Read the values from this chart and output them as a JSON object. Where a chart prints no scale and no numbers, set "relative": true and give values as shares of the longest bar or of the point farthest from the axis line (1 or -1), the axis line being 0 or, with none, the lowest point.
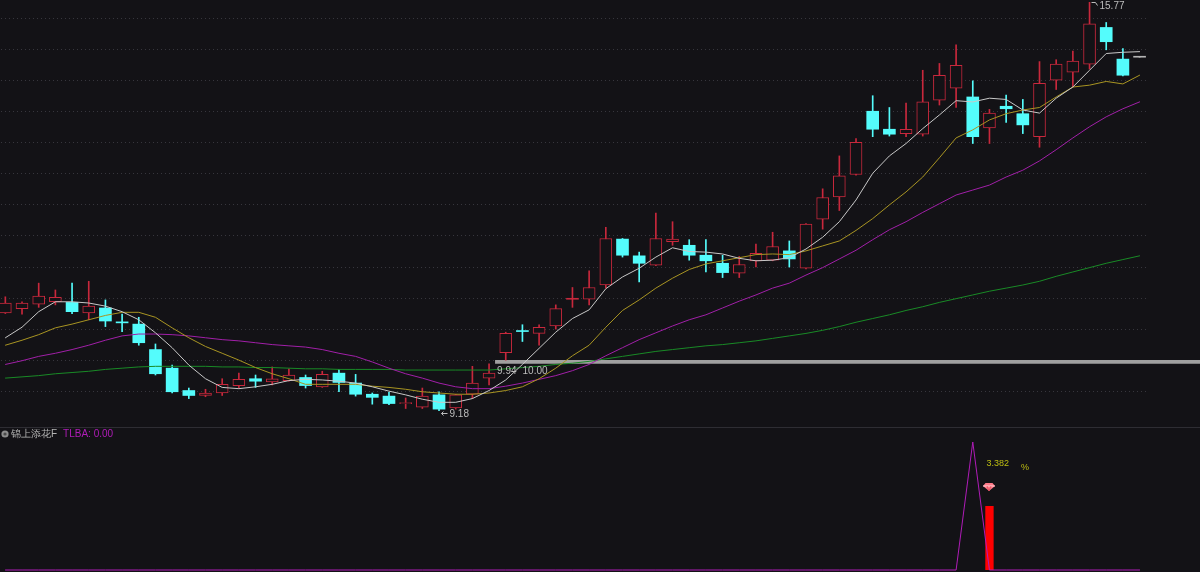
{
  "chart_data": [
    {
      "type": "candlestick",
      "categories": [
        null,
        null,
        null,
        null,
        null,
        null,
        null,
        null,
        null,
        null,
        null,
        null,
        null,
        null,
        null,
        null,
        null,
        null,
        null,
        null,
        null,
        null,
        null,
        null,
        null,
        null,
        null,
        null,
        null,
        null,
        null,
        null,
        null,
        null,
        null,
        null,
        null,
        null,
        null,
        null,
        null,
        null,
        null,
        null,
        null,
        null,
        null,
        null,
        null,
        null,
        null,
        null,
        null,
        null,
        null,
        null,
        null,
        null,
        null,
        null,
        null,
        null,
        null,
        null,
        null,
        null,
        null,
        null,
        null
      ],
      "ohlc": [
        [
          10.76,
          11.02,
          10.75,
          10.92
        ],
        [
          10.83,
          10.94,
          10.74,
          10.92
        ],
        [
          10.9,
          11.24,
          10.85,
          11.03
        ],
        [
          10.94,
          11.13,
          10.89,
          11.01
        ],
        [
          10.93,
          11.24,
          10.75,
          10.78
        ],
        [
          10.76,
          11.27,
          10.65,
          10.87
        ],
        [
          10.84,
          10.97,
          10.54,
          10.63
        ],
        [
          10.6,
          10.74,
          10.46,
          10.6
        ],
        [
          10.58,
          10.69,
          10.24,
          10.28
        ],
        [
          10.17,
          10.26,
          9.76,
          9.78
        ],
        [
          9.87,
          9.92,
          9.47,
          9.49
        ],
        [
          9.51,
          9.55,
          9.38,
          9.43
        ],
        [
          9.43,
          9.53,
          9.41,
          9.47
        ],
        [
          9.47,
          9.7,
          9.43,
          9.61
        ],
        [
          9.59,
          9.79,
          9.55,
          9.69
        ],
        [
          9.7,
          9.76,
          9.56,
          9.66
        ],
        [
          9.65,
          9.89,
          9.6,
          9.7
        ],
        [
          9.67,
          9.86,
          9.66,
          9.76
        ],
        [
          9.72,
          9.76,
          9.55,
          9.59
        ],
        [
          9.57,
          9.82,
          9.56,
          9.77
        ],
        [
          9.79,
          9.85,
          9.49,
          9.64
        ],
        [
          9.63,
          9.77,
          9.42,
          9.45
        ],
        [
          9.45,
          9.47,
          9.29,
          9.4
        ],
        [
          9.42,
          9.48,
          9.28,
          9.3
        ],
        [
          9.3,
          9.39,
          9.22,
          9.31
        ],
        [
          9.24,
          9.55,
          9.22,
          9.42
        ],
        [
          9.44,
          9.49,
          9.18,
          9.21
        ],
        [
          9.23,
          9.45,
          9.21,
          9.44
        ],
        [
          9.45,
          9.9,
          9.38,
          9.63
        ],
        [
          9.71,
          9.94,
          9.6,
          9.79
        ],
        [
          10.12,
          10.45,
          10.0,
          10.43
        ],
        [
          10.46,
          10.57,
          10.3,
          10.46
        ],
        [
          10.43,
          10.57,
          10.24,
          10.53
        ],
        [
          10.55,
          10.89,
          10.5,
          10.83
        ],
        [
          10.98,
          11.17,
          10.85,
          10.98
        ],
        [
          10.98,
          11.44,
          10.89,
          11.17
        ],
        [
          11.21,
          12.14,
          11.16,
          11.96
        ],
        [
          11.95,
          11.96,
          11.66,
          11.69
        ],
        [
          11.68,
          11.74,
          11.26,
          11.56
        ],
        [
          11.53,
          12.37,
          11.52,
          11.96
        ],
        [
          11.91,
          12.23,
          11.85,
          11.95
        ],
        [
          11.85,
          11.94,
          11.61,
          11.69
        ],
        [
          11.69,
          11.94,
          11.42,
          11.6
        ],
        [
          11.56,
          11.69,
          11.33,
          11.41
        ],
        [
          11.4,
          11.67,
          11.33,
          11.54
        ],
        [
          11.6,
          11.87,
          11.5,
          11.72
        ],
        [
          11.61,
          12.06,
          11.6,
          11.83
        ],
        [
          11.76,
          11.92,
          11.5,
          11.63
        ],
        [
          11.48,
          12.2,
          11.47,
          12.19
        ],
        [
          12.27,
          12.76,
          12.11,
          12.62
        ],
        [
          12.63,
          13.29,
          12.41,
          12.97
        ],
        [
          12.99,
          13.57,
          12.98,
          13.51
        ],
        [
          14.01,
          14.26,
          13.6,
          13.72
        ],
        [
          13.72,
          14.07,
          13.61,
          13.64
        ],
        [
          13.65,
          14.14,
          13.6,
          13.72
        ],
        [
          13.64,
          14.67,
          13.61,
          14.16
        ],
        [
          14.19,
          14.78,
          14.11,
          14.59
        ],
        [
          14.38,
          15.08,
          14.07,
          14.75
        ],
        [
          14.24,
          14.5,
          13.49,
          13.6
        ],
        [
          13.74,
          14.04,
          13.49,
          13.98
        ],
        [
          14.09,
          14.27,
          13.83,
          14.05
        ],
        [
          13.97,
          14.2,
          13.65,
          13.79
        ],
        [
          13.6,
          14.81,
          13.43,
          14.46
        ],
        [
          14.51,
          14.84,
          14.36,
          14.77
        ],
        [
          14.64,
          14.98,
          14.4,
          14.82
        ],
        [
          14.77,
          15.77,
          14.69,
          15.42
        ],
        [
          15.36,
          15.44,
          15.0,
          15.13
        ],
        [
          14.85,
          15.02,
          14.58,
          14.59
        ],
        [
          14.88,
          14.88,
          14.88,
          14.88
        ]
      ],
      "colors": [
        "#c8283c",
        "#c8283c",
        "#c8283c",
        "#c8283c",
        "#54fcfc",
        "#c8283c",
        "#54fcfc",
        "#54fcfc",
        "#54fcfc",
        "#54fcfc",
        "#54fcfc",
        "#54fcfc",
        "#c8283c",
        "#c8283c",
        "#c8283c",
        "#54fcfc",
        "#c8283c",
        "#c8283c",
        "#54fcfc",
        "#c8283c",
        "#54fcfc",
        "#54fcfc",
        "#54fcfc",
        "#54fcfc",
        "#c8283c",
        "#c8283c",
        "#54fcfc",
        "#c8283c",
        "#c8283c",
        "#c8283c",
        "#c8283c",
        "#54fcfc",
        "#c8283c",
        "#c8283c",
        "#c8283c",
        "#c8283c",
        "#c8283c",
        "#54fcfc",
        "#54fcfc",
        "#c8283c",
        "#c8283c",
        "#54fcfc",
        "#54fcfc",
        "#54fcfc",
        "#c8283c",
        "#c8283c",
        "#c8283c",
        "#54fcfc",
        "#c8283c",
        "#c8283c",
        "#c8283c",
        "#c8283c",
        "#54fcfc",
        "#54fcfc",
        "#c8283c",
        "#c8283c",
        "#c8283c",
        "#c8283c",
        "#54fcfc",
        "#c8283c",
        "#54fcfc",
        "#54fcfc",
        "#c8283c",
        "#c8283c",
        "#c8283c",
        "#c8283c",
        "#54fcfc",
        "#54fcfc",
        "#b4b4b4"
      ],
      "series": [
        {
          "type": "line",
          "color": "#c8c8c8",
          "values": [
            10.36,
            10.53,
            10.78,
            10.94,
            10.94,
            10.92,
            10.87,
            10.78,
            10.65,
            10.44,
            10.2,
            9.92,
            9.7,
            9.56,
            9.54,
            9.57,
            9.61,
            9.67,
            9.69,
            9.68,
            9.66,
            9.63,
            9.57,
            9.5,
            9.44,
            9.37,
            9.32,
            9.32,
            9.38,
            9.51,
            9.68,
            9.93,
            10.19,
            10.45,
            10.67,
            10.81,
            11.15,
            11.34,
            11.48,
            11.66,
            11.81,
            11.75,
            11.74,
            11.71,
            11.64,
            11.6,
            11.61,
            11.65,
            11.79,
            11.98,
            12.23,
            12.58,
            13.01,
            13.29,
            13.49,
            13.73,
            13.95,
            14.18,
            14.16,
            14.22,
            14.2,
            14.03,
            13.98,
            14.22,
            14.4,
            14.67,
            14.94,
            14.96,
            14.97
          ]
        },
        {
          "type": "line",
          "color": "#a89422",
          "values": [
            10.24,
            10.32,
            10.41,
            10.52,
            10.58,
            10.65,
            10.72,
            10.77,
            10.77,
            10.69,
            10.52,
            10.36,
            10.22,
            10.11,
            10.0,
            9.88,
            9.78,
            9.7,
            9.61,
            9.61,
            9.61,
            9.61,
            9.58,
            9.56,
            9.53,
            9.49,
            9.47,
            9.45,
            9.45,
            9.47,
            9.51,
            9.57,
            9.7,
            9.87,
            10.07,
            10.24,
            10.53,
            10.8,
            10.97,
            11.16,
            11.32,
            11.46,
            11.55,
            11.6,
            11.65,
            11.7,
            11.71,
            11.7,
            11.76,
            11.84,
            11.92,
            12.09,
            12.28,
            12.5,
            12.71,
            12.95,
            13.26,
            13.58,
            13.71,
            13.87,
            13.97,
            14.03,
            14.07,
            14.24,
            14.4,
            14.43,
            14.49,
            14.45,
            14.59
          ]
        },
        {
          "type": "line",
          "color": "#a11fa8",
          "values": [
            9.93,
            9.99,
            10.06,
            10.11,
            10.17,
            10.24,
            10.32,
            10.39,
            10.42,
            10.42,
            10.41,
            10.39,
            10.36,
            10.33,
            10.31,
            10.28,
            10.25,
            10.23,
            10.21,
            10.17,
            10.11,
            10.06,
            9.97,
            9.87,
            9.78,
            9.71,
            9.63,
            9.57,
            9.54,
            9.54,
            9.58,
            9.63,
            9.69,
            9.75,
            9.83,
            9.93,
            10.07,
            10.2,
            10.33,
            10.44,
            10.55,
            10.65,
            10.73,
            10.84,
            10.95,
            11.05,
            11.16,
            11.24,
            11.37,
            11.49,
            11.63,
            11.77,
            11.94,
            12.1,
            12.23,
            12.38,
            12.52,
            12.66,
            12.74,
            12.82,
            12.95,
            13.06,
            13.21,
            13.39,
            13.58,
            13.76,
            13.92,
            14.05,
            14.16
          ]
        },
        {
          "type": "line",
          "color": "#198a26",
          "values": [
            9.71,
            9.73,
            9.75,
            9.78,
            9.8,
            9.82,
            9.85,
            9.87,
            9.89,
            9.9,
            9.9,
            9.9,
            9.9,
            9.89,
            9.89,
            9.88,
            9.88,
            9.87,
            9.86,
            9.86,
            9.85,
            9.85,
            9.85,
            9.85,
            9.84,
            9.84,
            9.84,
            9.84,
            9.84,
            9.84,
            9.86,
            9.88,
            9.9,
            9.93,
            9.95,
            9.98,
            10.02,
            10.06,
            10.1,
            10.14,
            10.17,
            10.2,
            10.23,
            10.25,
            10.28,
            10.31,
            10.35,
            10.39,
            10.43,
            10.48,
            10.54,
            10.61,
            10.67,
            10.73,
            10.8,
            10.86,
            10.93,
            10.99,
            11.05,
            11.11,
            11.16,
            11.21,
            11.27,
            11.35,
            11.42,
            11.49,
            11.56,
            11.62,
            11.68
          ]
        }
      ],
      "yticks": [
        {
          "value": 9.5,
          "label": null
        },
        {
          "value": 10,
          "label": null
        },
        {
          "value": 10.5,
          "label": null
        },
        {
          "value": 11,
          "label": null
        },
        {
          "value": 11.5,
          "label": null
        },
        {
          "value": 12,
          "label": null
        },
        {
          "value": 12.5,
          "label": null
        },
        {
          "value": 13,
          "label": null
        },
        {
          "value": 13.5,
          "label": null
        },
        {
          "value": 14,
          "label": null
        },
        {
          "value": 14.5,
          "label": null
        },
        {
          "value": 15,
          "label": null
        },
        {
          "value": 15.5,
          "label": null
        }
      ],
      "grid": "y",
      "tick_labels": false,
      "bands": [
        {
          "axis": "y",
          "from": 9.94,
          "to": 10.0,
          "color": "#a0a0a0"
        }
      ],
      "annotations": [
        "15.77",
        {
          "text": "9.18",
          "y": 9.18
        },
        {
          "text": "9.94",
          "y": 9.94
        },
        {
          "text": "10.00",
          "y": 10.0
        }
      ]
    },
    {
      "type": "bar",
      "title": "锦上添花F",
      "relative": true,
      "tick_labels": false,
      "categories": [
        null,
        null,
        null,
        null,
        null,
        null,
        null,
        null,
        null,
        null,
        null,
        null,
        null,
        null,
        null,
        null,
        null,
        null,
        null,
        null,
        null,
        null,
        null,
        null,
        null,
        null,
        null,
        null,
        null,
        null,
        null,
        null,
        null,
        null,
        null,
        null,
        null,
        null,
        null,
        null,
        null,
        null,
        null,
        null,
        null,
        null,
        null,
        null,
        null,
        null,
        null,
        null,
        null,
        null,
        null,
        null,
        null,
        null,
        null,
        null,
        null,
        null,
        null,
        null,
        null,
        null,
        null,
        null,
        null
      ],
      "series": [
        {
          "name": "TLBA: 0.00",
          "type": "line",
          "color": "#b01cb8",
          "values": [
            0,
            0,
            0,
            0,
            0,
            0,
            0,
            0,
            0,
            0,
            0,
            0,
            0,
            0,
            0,
            0,
            0,
            0,
            0,
            0,
            0,
            0,
            0,
            0,
            0,
            0,
            0,
            0,
            0,
            0,
            0,
            0,
            0,
            0,
            0,
            0,
            0,
            0,
            0,
            0,
            0,
            0,
            0,
            0,
            0,
            0,
            0,
            0,
            0,
            0,
            0,
            0,
            0,
            0,
            0,
            0,
            0,
            0,
            1,
            0,
            0,
            0,
            0,
            0,
            0,
            0,
            0,
            0,
            0
          ]
        },
        {
          "type": "bar",
          "color": "#ff0000",
          "values": [
            null,
            null,
            null,
            null,
            null,
            null,
            null,
            null,
            null,
            null,
            null,
            null,
            null,
            null,
            null,
            null,
            null,
            null,
            null,
            null,
            null,
            null,
            null,
            null,
            null,
            null,
            null,
            null,
            null,
            null,
            null,
            null,
            null,
            null,
            null,
            null,
            null,
            null,
            null,
            null,
            null,
            null,
            null,
            null,
            null,
            null,
            null,
            null,
            null,
            null,
            null,
            null,
            null,
            null,
            null,
            null,
            null,
            null,
            null,
            0.5,
            null,
            null,
            null,
            null,
            null,
            null,
            null,
            null,
            null
          ]
        }
      ],
      "annotations": [
        "3.382",
        "%"
      ]
    }
  ]
}
